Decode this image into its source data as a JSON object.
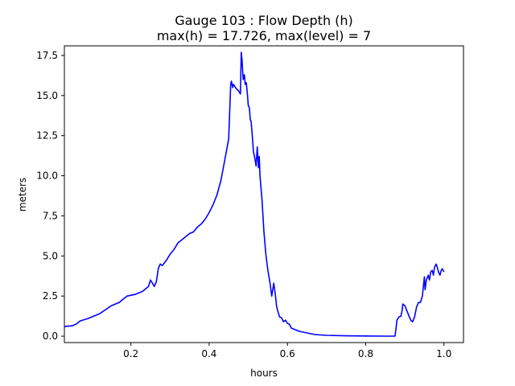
{
  "chart_data": {
    "type": "line",
    "title": "Gauge 103 : Flow Depth (h)",
    "subtitle": "max(h) =  17.726,    max(level) = 7",
    "xlabel": "hours",
    "ylabel": "meters",
    "xlim": [
      0.03,
      1.05
    ],
    "ylim": [
      -0.4,
      18.1
    ],
    "xticks": [
      0.2,
      0.4,
      0.6,
      0.8,
      1.0
    ],
    "xtick_labels": [
      "0.2",
      "0.4",
      "0.6",
      "0.8",
      "1.0"
    ],
    "yticks": [
      0.0,
      2.5,
      5.0,
      7.5,
      10.0,
      12.5,
      15.0,
      17.5
    ],
    "ytick_labels": [
      "0.0",
      "2.5",
      "5.0",
      "7.5",
      "10.0",
      "12.5",
      "15.0",
      "17.5"
    ],
    "grid": false,
    "series": [
      {
        "color": "#0000ff",
        "x": [
          0.03,
          0.05,
          0.06,
          0.07,
          0.09,
          0.12,
          0.15,
          0.17,
          0.18,
          0.19,
          0.21,
          0.23,
          0.24,
          0.245,
          0.25,
          0.255,
          0.26,
          0.265,
          0.27,
          0.275,
          0.28,
          0.29,
          0.3,
          0.31,
          0.32,
          0.33,
          0.34,
          0.35,
          0.36,
          0.37,
          0.38,
          0.39,
          0.4,
          0.41,
          0.42,
          0.43,
          0.44,
          0.45,
          0.455,
          0.457,
          0.46,
          0.462,
          0.465,
          0.47,
          0.475,
          0.48,
          0.482,
          0.484,
          0.487,
          0.49,
          0.492,
          0.495,
          0.498,
          0.5,
          0.503,
          0.505,
          0.507,
          0.51,
          0.513,
          0.516,
          0.52,
          0.523,
          0.526,
          0.528,
          0.53,
          0.535,
          0.54,
          0.545,
          0.55,
          0.555,
          0.56,
          0.565,
          0.568,
          0.57,
          0.572,
          0.575,
          0.58,
          0.585,
          0.59,
          0.595,
          0.6,
          0.605,
          0.61,
          0.62,
          0.63,
          0.65,
          0.67,
          0.7,
          0.75,
          0.8,
          0.85,
          0.875,
          0.878,
          0.88,
          0.885,
          0.89,
          0.893,
          0.895,
          0.9,
          0.905,
          0.91,
          0.915,
          0.92,
          0.925,
          0.93,
          0.935,
          0.94,
          0.945,
          0.95,
          0.952,
          0.955,
          0.96,
          0.963,
          0.966,
          0.97,
          0.973,
          0.976,
          0.98,
          0.983,
          0.986,
          0.99,
          0.993,
          0.996,
          1.0
        ],
        "y": [
          0.6,
          0.65,
          0.75,
          0.95,
          1.1,
          1.4,
          1.9,
          2.1,
          2.3,
          2.5,
          2.6,
          2.8,
          3.0,
          3.1,
          3.5,
          3.3,
          3.1,
          3.4,
          4.2,
          4.5,
          4.4,
          4.7,
          5.1,
          5.4,
          5.8,
          6.0,
          6.2,
          6.4,
          6.5,
          6.8,
          7.0,
          7.3,
          7.7,
          8.2,
          8.8,
          9.7,
          11.0,
          12.3,
          15.7,
          15.9,
          15.5,
          15.7,
          15.6,
          15.4,
          15.3,
          15.1,
          17.7,
          17.2,
          16.0,
          16.3,
          15.7,
          15.8,
          15.0,
          14.4,
          14.2,
          13.5,
          13.4,
          12.6,
          11.5,
          11.2,
          10.6,
          11.8,
          10.5,
          11.2,
          10.0,
          8.5,
          6.5,
          5.1,
          4.1,
          3.4,
          2.5,
          3.3,
          2.8,
          2.4,
          1.9,
          1.6,
          1.2,
          1.15,
          0.9,
          1.0,
          0.8,
          0.75,
          0.5,
          0.4,
          0.3,
          0.2,
          0.1,
          0.05,
          0.02,
          0.01,
          0.0,
          0.0,
          0.6,
          1.0,
          1.2,
          1.25,
          1.6,
          2.0,
          1.9,
          1.6,
          1.3,
          1.0,
          0.9,
          1.2,
          1.8,
          2.1,
          2.1,
          2.5,
          3.7,
          2.9,
          3.5,
          3.8,
          3.5,
          4.0,
          4.1,
          3.8,
          4.3,
          4.5,
          4.3,
          4.0,
          3.8,
          4.1,
          4.2,
          4.0
        ]
      }
    ]
  }
}
